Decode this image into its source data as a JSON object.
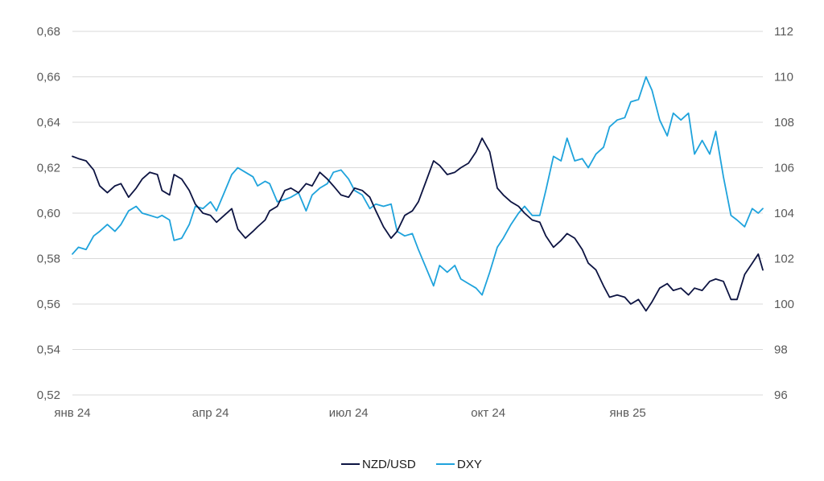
{
  "chart_data": {
    "type": "line",
    "title": "",
    "xlabel": "",
    "ylabel": "",
    "y2label": "",
    "x_start": "2024-01-01",
    "x_end": "2025-03-31",
    "x_ticks": [
      {
        "date": "2024-01-01",
        "label": "янв 24"
      },
      {
        "date": "2024-04-01",
        "label": "апр 24"
      },
      {
        "date": "2024-07-01",
        "label": "июл 24"
      },
      {
        "date": "2024-10-01",
        "label": "окт 24"
      },
      {
        "date": "2025-01-01",
        "label": "янв 25"
      }
    ],
    "y_left": {
      "range": [
        0.52,
        0.68
      ],
      "ticks": [
        0.52,
        0.54,
        0.56,
        0.58,
        0.6,
        0.62,
        0.64,
        0.66,
        0.68
      ],
      "tick_labels": [
        "0,52",
        "0,54",
        "0,56",
        "0,58",
        "0,60",
        "0,62",
        "0,64",
        "0,66",
        "0,68"
      ]
    },
    "y_right": {
      "range": [
        96,
        112
      ],
      "ticks": [
        96,
        98,
        100,
        102,
        104,
        106,
        108,
        110,
        112
      ],
      "tick_labels": [
        "96",
        "98",
        "100",
        "102",
        "104",
        "106",
        "108",
        "110",
        "112"
      ]
    },
    "grid": true,
    "legend_position": "bottom-center",
    "series": [
      {
        "name": "NZD/USD",
        "axis": "left",
        "color": "#0d1442",
        "points": [
          [
            "2024-01-01",
            0.625
          ],
          [
            "2024-01-05",
            0.624
          ],
          [
            "2024-01-10",
            0.623
          ],
          [
            "2024-01-15",
            0.619
          ],
          [
            "2024-01-19",
            0.612
          ],
          [
            "2024-01-24",
            0.609
          ],
          [
            "2024-01-29",
            0.612
          ],
          [
            "2024-02-02",
            0.613
          ],
          [
            "2024-02-07",
            0.607
          ],
          [
            "2024-02-12",
            0.611
          ],
          [
            "2024-02-16",
            0.615
          ],
          [
            "2024-02-21",
            0.618
          ],
          [
            "2024-02-26",
            0.617
          ],
          [
            "2024-02-29",
            0.61
          ],
          [
            "2024-03-05",
            0.608
          ],
          [
            "2024-03-08",
            0.617
          ],
          [
            "2024-03-13",
            0.615
          ],
          [
            "2024-03-18",
            0.61
          ],
          [
            "2024-03-22",
            0.604
          ],
          [
            "2024-03-27",
            0.6
          ],
          [
            "2024-04-01",
            0.599
          ],
          [
            "2024-04-05",
            0.596
          ],
          [
            "2024-04-10",
            0.599
          ],
          [
            "2024-04-15",
            0.602
          ],
          [
            "2024-04-19",
            0.593
          ],
          [
            "2024-04-24",
            0.589
          ],
          [
            "2024-04-29",
            0.592
          ],
          [
            "2024-05-02",
            0.594
          ],
          [
            "2024-05-07",
            0.597
          ],
          [
            "2024-05-10",
            0.601
          ],
          [
            "2024-05-15",
            0.603
          ],
          [
            "2024-05-20",
            0.61
          ],
          [
            "2024-05-24",
            0.611
          ],
          [
            "2024-05-29",
            0.609
          ],
          [
            "2024-06-03",
            0.613
          ],
          [
            "2024-06-07",
            0.612
          ],
          [
            "2024-06-12",
            0.618
          ],
          [
            "2024-06-17",
            0.615
          ],
          [
            "2024-06-21",
            0.612
          ],
          [
            "2024-06-26",
            0.608
          ],
          [
            "2024-07-01",
            0.607
          ],
          [
            "2024-07-05",
            0.611
          ],
          [
            "2024-07-10",
            0.61
          ],
          [
            "2024-07-15",
            0.607
          ],
          [
            "2024-07-19",
            0.601
          ],
          [
            "2024-07-24",
            0.594
          ],
          [
            "2024-07-29",
            0.589
          ],
          [
            "2024-08-02",
            0.592
          ],
          [
            "2024-08-07",
            0.599
          ],
          [
            "2024-08-12",
            0.601
          ],
          [
            "2024-08-16",
            0.605
          ],
          [
            "2024-08-21",
            0.614
          ],
          [
            "2024-08-26",
            0.623
          ],
          [
            "2024-08-30",
            0.621
          ],
          [
            "2024-09-04",
            0.617
          ],
          [
            "2024-09-09",
            0.618
          ],
          [
            "2024-09-13",
            0.62
          ],
          [
            "2024-09-18",
            0.622
          ],
          [
            "2024-09-23",
            0.627
          ],
          [
            "2024-09-27",
            0.633
          ],
          [
            "2024-10-02",
            0.627
          ],
          [
            "2024-10-07",
            0.611
          ],
          [
            "2024-10-11",
            0.608
          ],
          [
            "2024-10-16",
            0.605
          ],
          [
            "2024-10-21",
            0.603
          ],
          [
            "2024-10-25",
            0.6
          ],
          [
            "2024-10-30",
            0.597
          ],
          [
            "2024-11-04",
            0.596
          ],
          [
            "2024-11-08",
            0.59
          ],
          [
            "2024-11-13",
            0.585
          ],
          [
            "2024-11-18",
            0.588
          ],
          [
            "2024-11-22",
            0.591
          ],
          [
            "2024-11-27",
            0.589
          ],
          [
            "2024-12-02",
            0.584
          ],
          [
            "2024-12-06",
            0.578
          ],
          [
            "2024-12-11",
            0.575
          ],
          [
            "2024-12-16",
            0.568
          ],
          [
            "2024-12-20",
            0.563
          ],
          [
            "2024-12-25",
            0.564
          ],
          [
            "2024-12-30",
            0.563
          ],
          [
            "2025-01-03",
            0.56
          ],
          [
            "2025-01-08",
            0.562
          ],
          [
            "2025-01-13",
            0.557
          ],
          [
            "2025-01-17",
            0.561
          ],
          [
            "2025-01-22",
            0.567
          ],
          [
            "2025-01-27",
            0.569
          ],
          [
            "2025-01-31",
            0.566
          ],
          [
            "2025-02-05",
            0.567
          ],
          [
            "2025-02-10",
            0.564
          ],
          [
            "2025-02-14",
            0.567
          ],
          [
            "2025-02-19",
            0.566
          ],
          [
            "2025-02-24",
            0.57
          ],
          [
            "2025-02-28",
            0.571
          ],
          [
            "2025-03-05",
            0.57
          ],
          [
            "2025-03-10",
            0.562
          ],
          [
            "2025-03-14",
            0.562
          ],
          [
            "2025-03-19",
            0.573
          ],
          [
            "2025-03-24",
            0.578
          ],
          [
            "2025-03-28",
            0.582
          ],
          [
            "2025-03-31",
            0.575
          ]
        ]
      },
      {
        "name": "DXY",
        "axis": "right",
        "color": "#1fa3dc",
        "points": [
          [
            "2024-01-01",
            102.2
          ],
          [
            "2024-01-05",
            102.5
          ],
          [
            "2024-01-10",
            102.4
          ],
          [
            "2024-01-15",
            103.0
          ],
          [
            "2024-01-19",
            103.2
          ],
          [
            "2024-01-24",
            103.5
          ],
          [
            "2024-01-29",
            103.2
          ],
          [
            "2024-02-02",
            103.5
          ],
          [
            "2024-02-07",
            104.1
          ],
          [
            "2024-02-12",
            104.3
          ],
          [
            "2024-02-16",
            104.0
          ],
          [
            "2024-02-21",
            103.9
          ],
          [
            "2024-02-26",
            103.8
          ],
          [
            "2024-02-29",
            103.9
          ],
          [
            "2024-03-05",
            103.7
          ],
          [
            "2024-03-08",
            102.8
          ],
          [
            "2024-03-13",
            102.9
          ],
          [
            "2024-03-18",
            103.5
          ],
          [
            "2024-03-22",
            104.3
          ],
          [
            "2024-03-27",
            104.2
          ],
          [
            "2024-04-01",
            104.5
          ],
          [
            "2024-04-05",
            104.1
          ],
          [
            "2024-04-10",
            104.9
          ],
          [
            "2024-04-15",
            105.7
          ],
          [
            "2024-04-19",
            106.0
          ],
          [
            "2024-04-24",
            105.8
          ],
          [
            "2024-04-29",
            105.6
          ],
          [
            "2024-05-02",
            105.2
          ],
          [
            "2024-05-07",
            105.4
          ],
          [
            "2024-05-10",
            105.3
          ],
          [
            "2024-05-15",
            104.5
          ],
          [
            "2024-05-20",
            104.6
          ],
          [
            "2024-05-24",
            104.7
          ],
          [
            "2024-05-29",
            104.9
          ],
          [
            "2024-06-03",
            104.1
          ],
          [
            "2024-06-07",
            104.8
          ],
          [
            "2024-06-12",
            105.1
          ],
          [
            "2024-06-17",
            105.3
          ],
          [
            "2024-06-21",
            105.8
          ],
          [
            "2024-06-26",
            105.9
          ],
          [
            "2024-07-01",
            105.5
          ],
          [
            "2024-07-05",
            105.0
          ],
          [
            "2024-07-10",
            104.8
          ],
          [
            "2024-07-15",
            104.2
          ],
          [
            "2024-07-19",
            104.4
          ],
          [
            "2024-07-24",
            104.3
          ],
          [
            "2024-07-29",
            104.4
          ],
          [
            "2024-08-02",
            103.2
          ],
          [
            "2024-08-07",
            103.0
          ],
          [
            "2024-08-12",
            103.1
          ],
          [
            "2024-08-16",
            102.4
          ],
          [
            "2024-08-21",
            101.6
          ],
          [
            "2024-08-26",
            100.8
          ],
          [
            "2024-08-30",
            101.7
          ],
          [
            "2024-09-04",
            101.4
          ],
          [
            "2024-09-09",
            101.7
          ],
          [
            "2024-09-13",
            101.1
          ],
          [
            "2024-09-18",
            100.9
          ],
          [
            "2024-09-23",
            100.7
          ],
          [
            "2024-09-27",
            100.4
          ],
          [
            "2024-10-02",
            101.4
          ],
          [
            "2024-10-07",
            102.5
          ],
          [
            "2024-10-11",
            102.9
          ],
          [
            "2024-10-16",
            103.5
          ],
          [
            "2024-10-21",
            104.0
          ],
          [
            "2024-10-25",
            104.3
          ],
          [
            "2024-10-30",
            103.9
          ],
          [
            "2024-11-04",
            103.9
          ],
          [
            "2024-11-08",
            105.0
          ],
          [
            "2024-11-13",
            106.5
          ],
          [
            "2024-11-18",
            106.3
          ],
          [
            "2024-11-22",
            107.3
          ],
          [
            "2024-11-27",
            106.3
          ],
          [
            "2024-12-02",
            106.4
          ],
          [
            "2024-12-06",
            106.0
          ],
          [
            "2024-12-11",
            106.6
          ],
          [
            "2024-12-16",
            106.9
          ],
          [
            "2024-12-20",
            107.8
          ],
          [
            "2024-12-25",
            108.1
          ],
          [
            "2024-12-30",
            108.2
          ],
          [
            "2025-01-03",
            108.9
          ],
          [
            "2025-01-08",
            109.0
          ],
          [
            "2025-01-13",
            110.0
          ],
          [
            "2025-01-17",
            109.4
          ],
          [
            "2025-01-22",
            108.1
          ],
          [
            "2025-01-27",
            107.4
          ],
          [
            "2025-01-31",
            108.4
          ],
          [
            "2025-02-05",
            108.1
          ],
          [
            "2025-02-10",
            108.4
          ],
          [
            "2025-02-14",
            106.6
          ],
          [
            "2025-02-19",
            107.2
          ],
          [
            "2025-02-24",
            106.6
          ],
          [
            "2025-02-28",
            107.6
          ],
          [
            "2025-03-05",
            105.6
          ],
          [
            "2025-03-10",
            103.9
          ],
          [
            "2025-03-14",
            103.7
          ],
          [
            "2025-03-19",
            103.4
          ],
          [
            "2025-03-24",
            104.2
          ],
          [
            "2025-03-28",
            104.0
          ],
          [
            "2025-03-31",
            104.2
          ]
        ]
      }
    ]
  }
}
